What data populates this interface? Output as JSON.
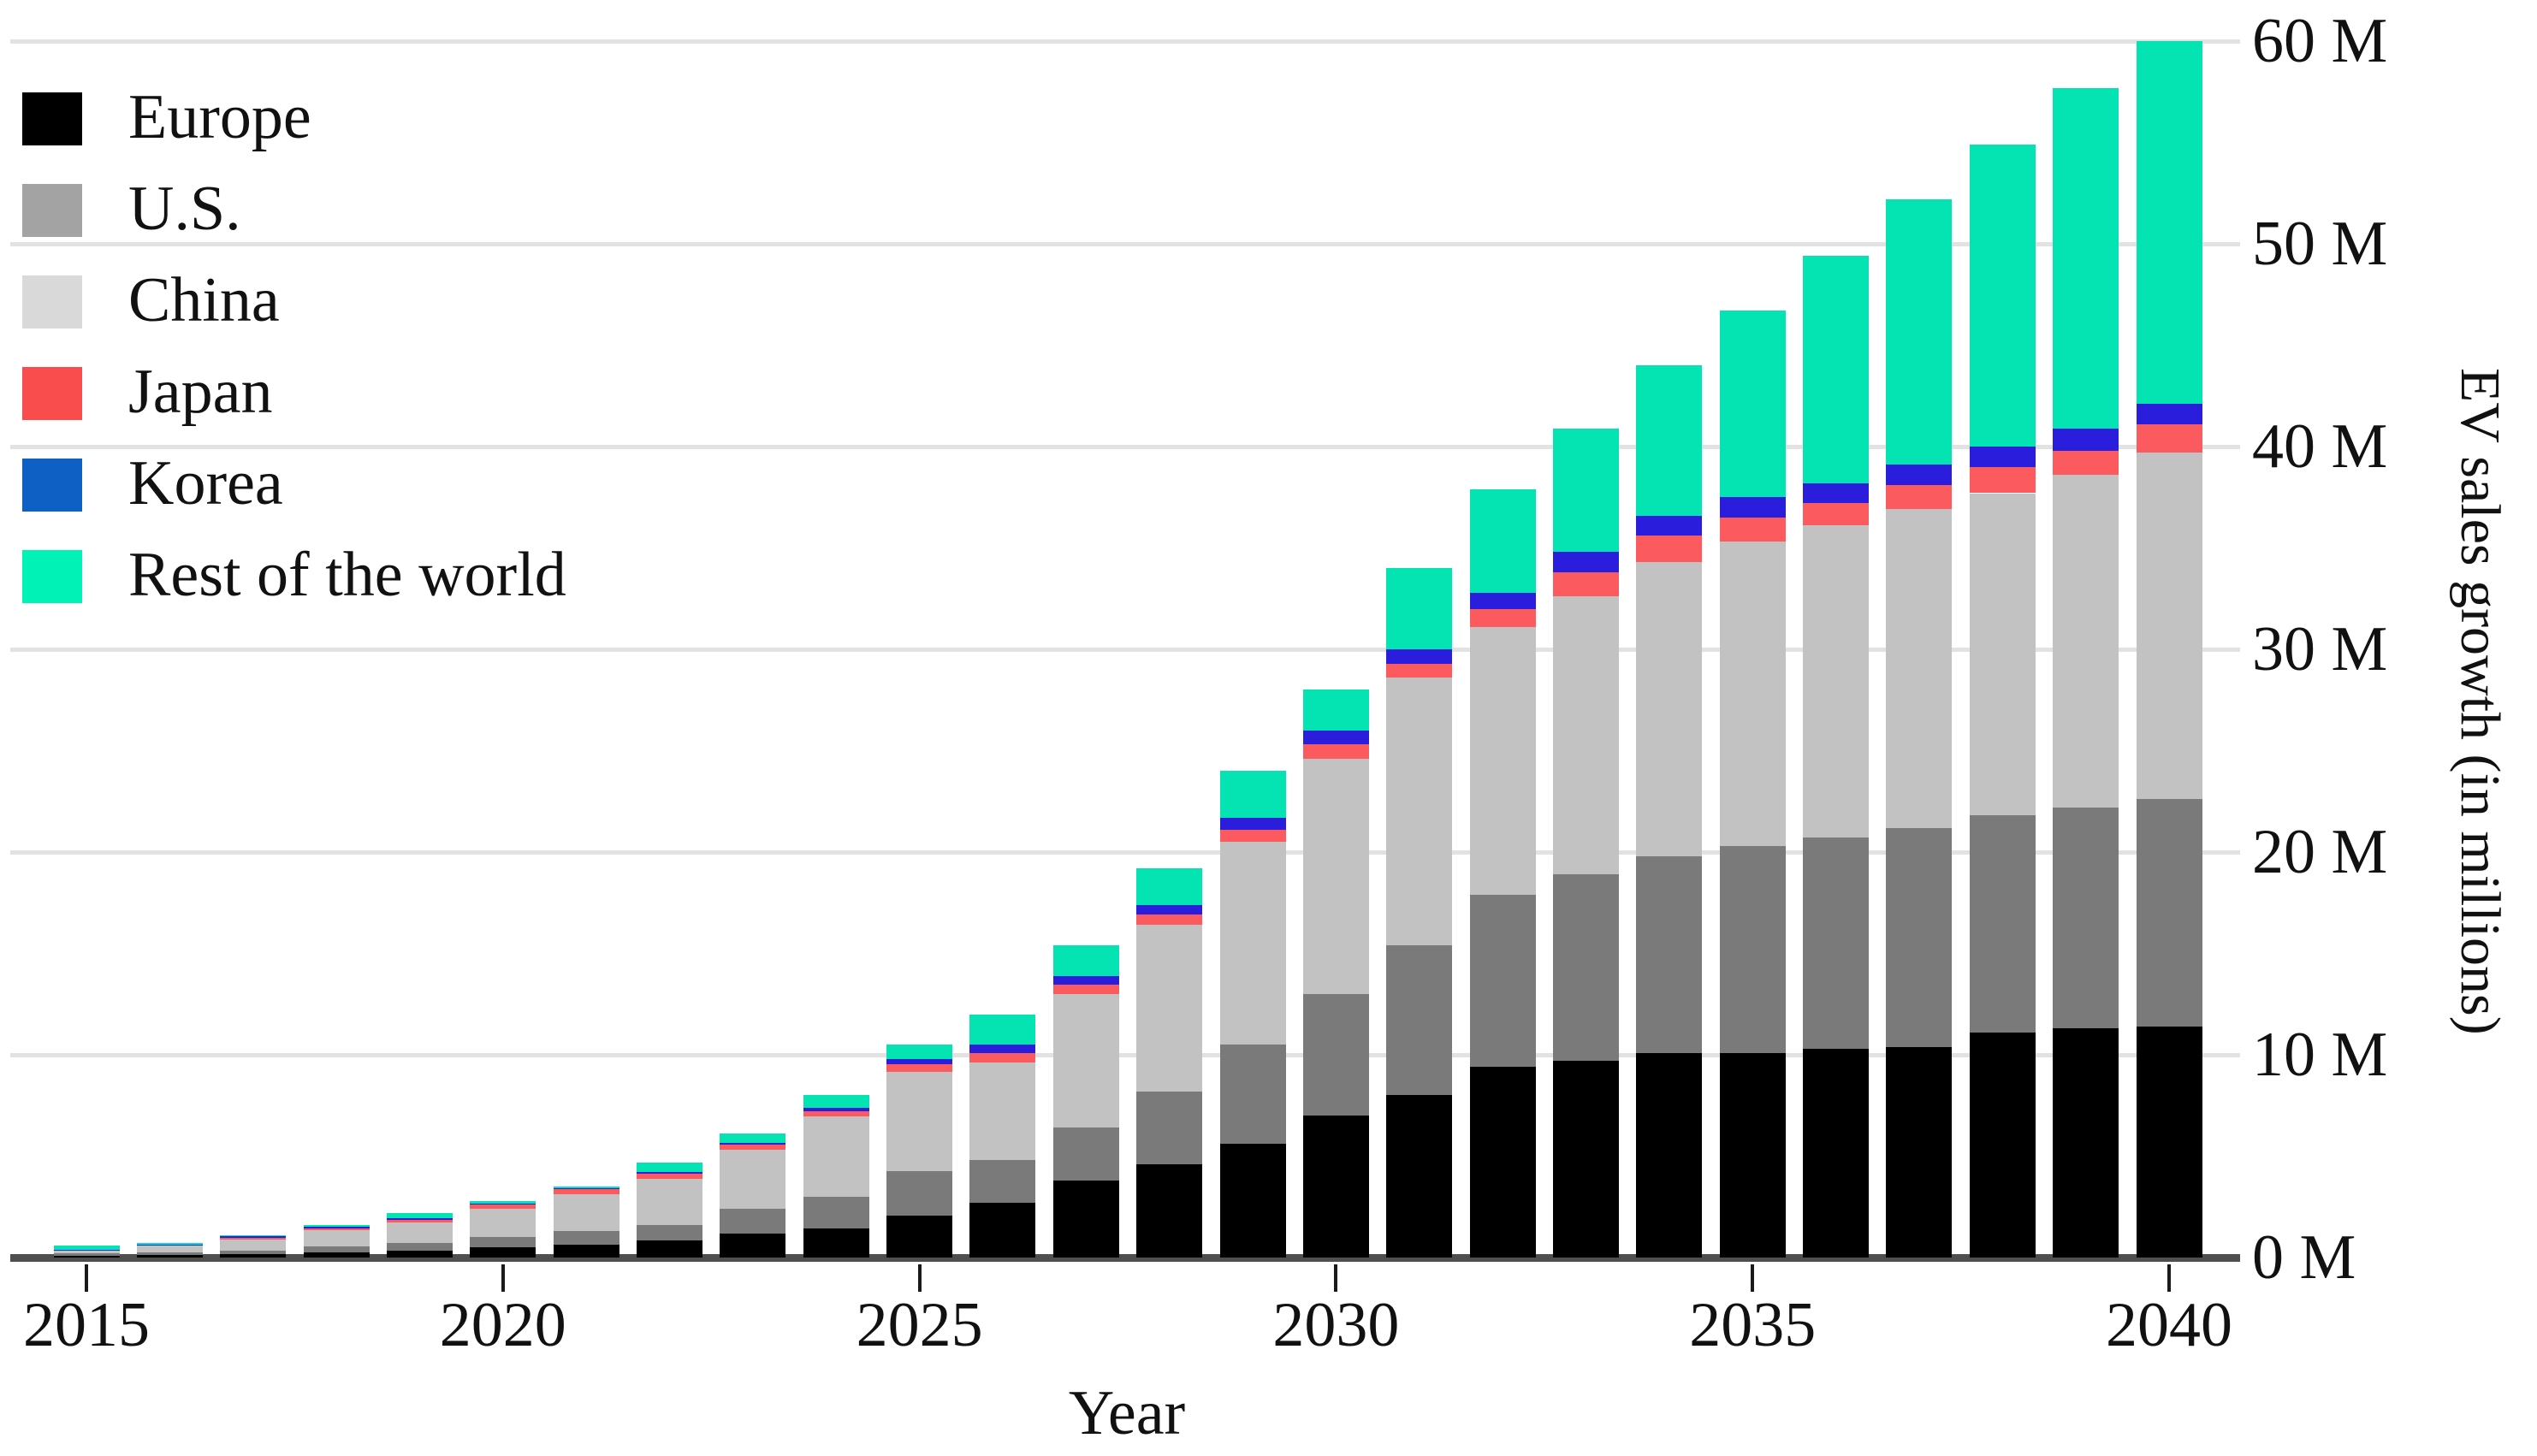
{
  "figure": {
    "x_axis_title": "Year",
    "y_axis_title": "EV sales growth (in millions)"
  },
  "colors": {
    "background": "#ffffff",
    "gridline": "#e2e2e2",
    "axis_line": "#4f4f4f",
    "tick": "#1a1a1a",
    "text": "#111111"
  },
  "chart_data": {
    "type": "bar",
    "stacked": true,
    "title": "",
    "xlabel": "Year",
    "ylabel": "EV sales growth (in millions)",
    "categories": [
      "2015",
      "2016",
      "2017",
      "2018",
      "2019",
      "2020",
      "2021",
      "2022",
      "2023",
      "2024",
      "2025",
      "2026",
      "2027",
      "2028",
      "2029",
      "2030",
      "2031",
      "2032",
      "2033",
      "2034",
      "2035",
      "2036",
      "2037",
      "2038",
      "2039",
      "2040"
    ],
    "x_tick_labels": [
      "2015",
      "2020",
      "2025",
      "2030",
      "2035",
      "2040"
    ],
    "y_tick_labels": [
      "0 M",
      "10 M",
      "20 M",
      "30 M",
      "40 M",
      "50 M",
      "60 M"
    ],
    "ylim": [
      0,
      60
    ],
    "y_unit": "millions",
    "grid": true,
    "legend_position": "upper-left",
    "series": [
      {
        "name": "Europe",
        "bar_color": "#000000",
        "legend_color": "#000000",
        "values": [
          0.1,
          0.12,
          0.15,
          0.25,
          0.35,
          0.5,
          0.62,
          0.85,
          1.2,
          1.45,
          2.08,
          2.7,
          3.8,
          4.6,
          5.6,
          7.0,
          8.0,
          9.4,
          9.7,
          10.1,
          10.1,
          10.3,
          10.4,
          11.1,
          11.3,
          11.4
        ]
      },
      {
        "name": "U.S.",
        "bar_color": "#7a7a7a",
        "legend_color": "#a3a3a3",
        "values": [
          0.12,
          0.14,
          0.18,
          0.3,
          0.35,
          0.5,
          0.7,
          0.75,
          1.2,
          1.55,
          2.17,
          2.1,
          2.6,
          3.6,
          4.9,
          6.0,
          7.4,
          8.5,
          9.2,
          9.7,
          10.2,
          10.4,
          10.8,
          10.7,
          10.9,
          11.2
        ]
      },
      {
        "name": "China",
        "bar_color": "#c2c2c2",
        "legend_color": "#d9d9d9",
        "values": [
          0.12,
          0.35,
          0.55,
          0.8,
          1.05,
          1.4,
          1.8,
          2.3,
          2.9,
          3.95,
          4.9,
          4.8,
          6.6,
          8.2,
          10.0,
          11.6,
          13.2,
          13.2,
          13.7,
          14.5,
          15.0,
          15.4,
          15.7,
          15.9,
          16.4,
          17.1
        ]
      },
      {
        "name": "Japan",
        "bar_color": "#fb5a5e",
        "legend_color": "#f94d4d",
        "values": [
          0.04,
          0.04,
          0.15,
          0.12,
          0.12,
          0.2,
          0.28,
          0.25,
          0.25,
          0.25,
          0.4,
          0.5,
          0.45,
          0.5,
          0.6,
          0.7,
          0.7,
          0.9,
          1.2,
          1.3,
          1.2,
          1.1,
          1.2,
          1.3,
          1.2,
          1.4
        ]
      },
      {
        "name": "Korea",
        "bar_color": "#2a1ddb",
        "legend_color": "#0e60c4",
        "values": [
          0.01,
          0.01,
          0.02,
          0.03,
          0.05,
          0.06,
          0.05,
          0.08,
          0.1,
          0.2,
          0.25,
          0.4,
          0.45,
          0.5,
          0.6,
          0.7,
          0.7,
          0.8,
          1.0,
          1.0,
          1.0,
          1.0,
          1.0,
          1.0,
          1.1,
          1.0
        ]
      },
      {
        "name": "Rest of the world",
        "bar_color": "#04e3b2",
        "legend_color": "#00f2b6",
        "values": [
          0.21,
          0.04,
          0.05,
          0.1,
          0.28,
          0.14,
          0.05,
          0.47,
          0.45,
          0.6,
          0.7,
          1.5,
          1.5,
          1.8,
          2.3,
          2.0,
          4.0,
          5.1,
          6.1,
          7.4,
          9.2,
          11.2,
          13.1,
          14.9,
          16.8,
          17.9
        ]
      }
    ],
    "totals": [
      0.6,
      0.7,
      1.1,
      1.6,
      2.2,
      2.8,
      3.5,
      4.7,
      6.1,
      8.0,
      10.5,
      12.0,
      15.4,
      19.2,
      24.0,
      28.0,
      34.0,
      37.9,
      40.9,
      44.0,
      46.7,
      49.4,
      52.2,
      54.9,
      57.7,
      60.0
    ]
  }
}
